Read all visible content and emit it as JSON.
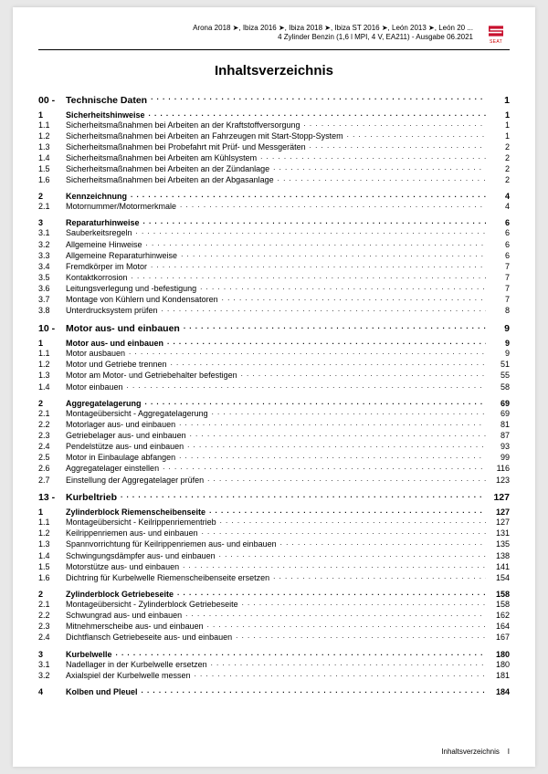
{
  "header": {
    "line1": "Arona 2018 ➤, Ibiza 2016 ➤, Ibiza 2018 ➤, Ibiza ST 2016 ➤, León 2013 ➤, León 20 ...",
    "line2": "4 Zylinder Benzin (1,6 l MPI, 4 V, EA211) - Ausgabe 06.2021",
    "brand": "SEAT"
  },
  "title": "Inhaltsverzeichnis",
  "footer": {
    "label": "Inhaltsverzeichnis",
    "page": "I"
  },
  "sections": [
    {
      "num": "00 -",
      "title": "Technische Daten",
      "page": "1",
      "groups": [
        {
          "head": {
            "num": "1",
            "label": "Sicherheitshinweise",
            "page": "1"
          },
          "items": [
            {
              "num": "1.1",
              "label": "Sicherheitsmaßnahmen bei Arbeiten an der Kraftstoffversorgung",
              "page": "1"
            },
            {
              "num": "1.2",
              "label": "Sicherheitsmaßnahmen bei Arbeiten an Fahrzeugen mit Start-Stopp-System",
              "page": "1"
            },
            {
              "num": "1.3",
              "label": "Sicherheitsmaßnahmen bei Probefahrt mit Prüf- und Messgeräten",
              "page": "2"
            },
            {
              "num": "1.4",
              "label": "Sicherheitsmaßnahmen bei Arbeiten am Kühlsystem",
              "page": "2"
            },
            {
              "num": "1.5",
              "label": "Sicherheitsmaßnahmen bei Arbeiten an der Zündanlage",
              "page": "2"
            },
            {
              "num": "1.6",
              "label": "Sicherheitsmaßnahmen bei Arbeiten an der Abgasanlage",
              "page": "2"
            }
          ]
        },
        {
          "head": {
            "num": "2",
            "label": "Kennzeichnung",
            "page": "4"
          },
          "items": [
            {
              "num": "2.1",
              "label": "Motornummer/Motormerkmale",
              "page": "4"
            }
          ]
        },
        {
          "head": {
            "num": "3",
            "label": "Reparaturhinweise",
            "page": "6"
          },
          "items": [
            {
              "num": "3.1",
              "label": "Sauberkeitsregeln",
              "page": "6"
            },
            {
              "num": "3.2",
              "label": "Allgemeine Hinweise",
              "page": "6"
            },
            {
              "num": "3.3",
              "label": "Allgemeine Reparaturhinweise",
              "page": "6"
            },
            {
              "num": "3.4",
              "label": "Fremdkörper im Motor",
              "page": "7"
            },
            {
              "num": "3.5",
              "label": "Kontaktkorrosion",
              "page": "7"
            },
            {
              "num": "3.6",
              "label": "Leitungsverlegung und -befestigung",
              "page": "7"
            },
            {
              "num": "3.7",
              "label": "Montage von Kühlern und Kondensatoren",
              "page": "7"
            },
            {
              "num": "3.8",
              "label": "Unterdrucksystem prüfen",
              "page": "8"
            }
          ]
        }
      ]
    },
    {
      "num": "10 -",
      "title": "Motor aus- und einbauen",
      "page": "9",
      "groups": [
        {
          "head": {
            "num": "1",
            "label": "Motor aus- und einbauen",
            "page": "9"
          },
          "items": [
            {
              "num": "1.1",
              "label": "Motor ausbauen",
              "page": "9"
            },
            {
              "num": "1.2",
              "label": "Motor und Getriebe trennen",
              "page": "51"
            },
            {
              "num": "1.3",
              "label": "Motor am Motor- und Getriebehalter befestigen",
              "page": "55"
            },
            {
              "num": "1.4",
              "label": "Motor einbauen",
              "page": "58"
            }
          ]
        },
        {
          "head": {
            "num": "2",
            "label": "Aggregatelagerung",
            "page": "69"
          },
          "items": [
            {
              "num": "2.1",
              "label": "Montageübersicht - Aggregatelagerung",
              "page": "69"
            },
            {
              "num": "2.2",
              "label": "Motorlager aus- und einbauen",
              "page": "81"
            },
            {
              "num": "2.3",
              "label": "Getriebelager aus- und einbauen",
              "page": "87"
            },
            {
              "num": "2.4",
              "label": "Pendelstütze aus- und einbauen",
              "page": "93"
            },
            {
              "num": "2.5",
              "label": "Motor in Einbaulage abfangen",
              "page": "99"
            },
            {
              "num": "2.6",
              "label": "Aggregatelager einstellen",
              "page": "116"
            },
            {
              "num": "2.7",
              "label": "Einstellung der Aggregatelager prüfen",
              "page": "123"
            }
          ]
        }
      ]
    },
    {
      "num": "13 -",
      "title": "Kurbeltrieb",
      "page": "127",
      "groups": [
        {
          "head": {
            "num": "1",
            "label": "Zylinderblock Riemenscheibenseite",
            "page": "127"
          },
          "items": [
            {
              "num": "1.1",
              "label": "Montageübersicht - Keilrippenriementrieb",
              "page": "127"
            },
            {
              "num": "1.2",
              "label": "Keilrippenriemen aus- und einbauen",
              "page": "131"
            },
            {
              "num": "1.3",
              "label": "Spannvorrichtung für Keilrippenriemen aus- und einbauen",
              "page": "135"
            },
            {
              "num": "1.4",
              "label": "Schwingungsdämpfer aus- und einbauen",
              "page": "138"
            },
            {
              "num": "1.5",
              "label": "Motorstütze aus- und einbauen",
              "page": "141"
            },
            {
              "num": "1.6",
              "label": "Dichtring für Kurbelwelle Riemenscheibenseite ersetzen",
              "page": "154"
            }
          ]
        },
        {
          "head": {
            "num": "2",
            "label": "Zylinderblock Getriebeseite",
            "page": "158"
          },
          "items": [
            {
              "num": "2.1",
              "label": "Montageübersicht - Zylinderblock Getriebeseite",
              "page": "158"
            },
            {
              "num": "2.2",
              "label": "Schwungrad aus- und einbauen",
              "page": "162"
            },
            {
              "num": "2.3",
              "label": "Mitnehmerscheibe aus- und einbauen",
              "page": "164"
            },
            {
              "num": "2.4",
              "label": "Dichtflansch Getriebeseite aus- und einbauen",
              "page": "167"
            }
          ]
        },
        {
          "head": {
            "num": "3",
            "label": "Kurbelwelle",
            "page": "180"
          },
          "items": [
            {
              "num": "3.1",
              "label": "Nadellager in der Kurbelwelle ersetzen",
              "page": "180"
            },
            {
              "num": "3.2",
              "label": "Axialspiel der Kurbelwelle messen",
              "page": "181"
            }
          ]
        },
        {
          "head": {
            "num": "4",
            "label": "Kolben und Pleuel",
            "page": "184"
          },
          "items": []
        }
      ]
    }
  ]
}
